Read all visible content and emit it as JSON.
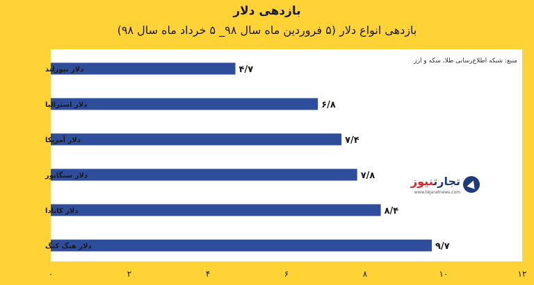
{
  "chart_data": {
    "type": "bar",
    "orientation": "horizontal",
    "title": "بازدهی دلار",
    "subtitle": "بازدهی انواع دلار (۵ فروردین ماه سال ۹۸_ ۵ خرداد ماه سال ۹۸)",
    "source": "منبع: شبکه اطلاع‌رسانی طلا، سکه و ارز",
    "categories": [
      "دلار نیوزلند",
      "دلار استرالیا",
      "دلار آمریکا",
      "دلار سنگاپور",
      "دلار کانادا",
      "دلار هنگ کنگ"
    ],
    "values": [
      4.7,
      6.8,
      7.4,
      7.8,
      8.4,
      9.7
    ],
    "value_labels": [
      "۴/۷",
      "۶/۸",
      "۷/۴",
      "۷/۸",
      "۸/۴",
      "۹/۷"
    ],
    "xlim": [
      0,
      12
    ],
    "x_ticks": [
      0,
      2,
      4,
      6,
      8,
      10,
      12
    ],
    "x_tick_labels": [
      "۰",
      "۲",
      "۴",
      "۶",
      "۸",
      "۱۰",
      "۱۲"
    ],
    "grid": false,
    "bar_color": "#2e4e9c"
  },
  "logo": {
    "name_part1": "تجارت",
    "name_part2": "نیوز",
    "url": "www.tejaratnews.com",
    "color": "#1f3a7a",
    "accent_color": "#d7262c"
  }
}
